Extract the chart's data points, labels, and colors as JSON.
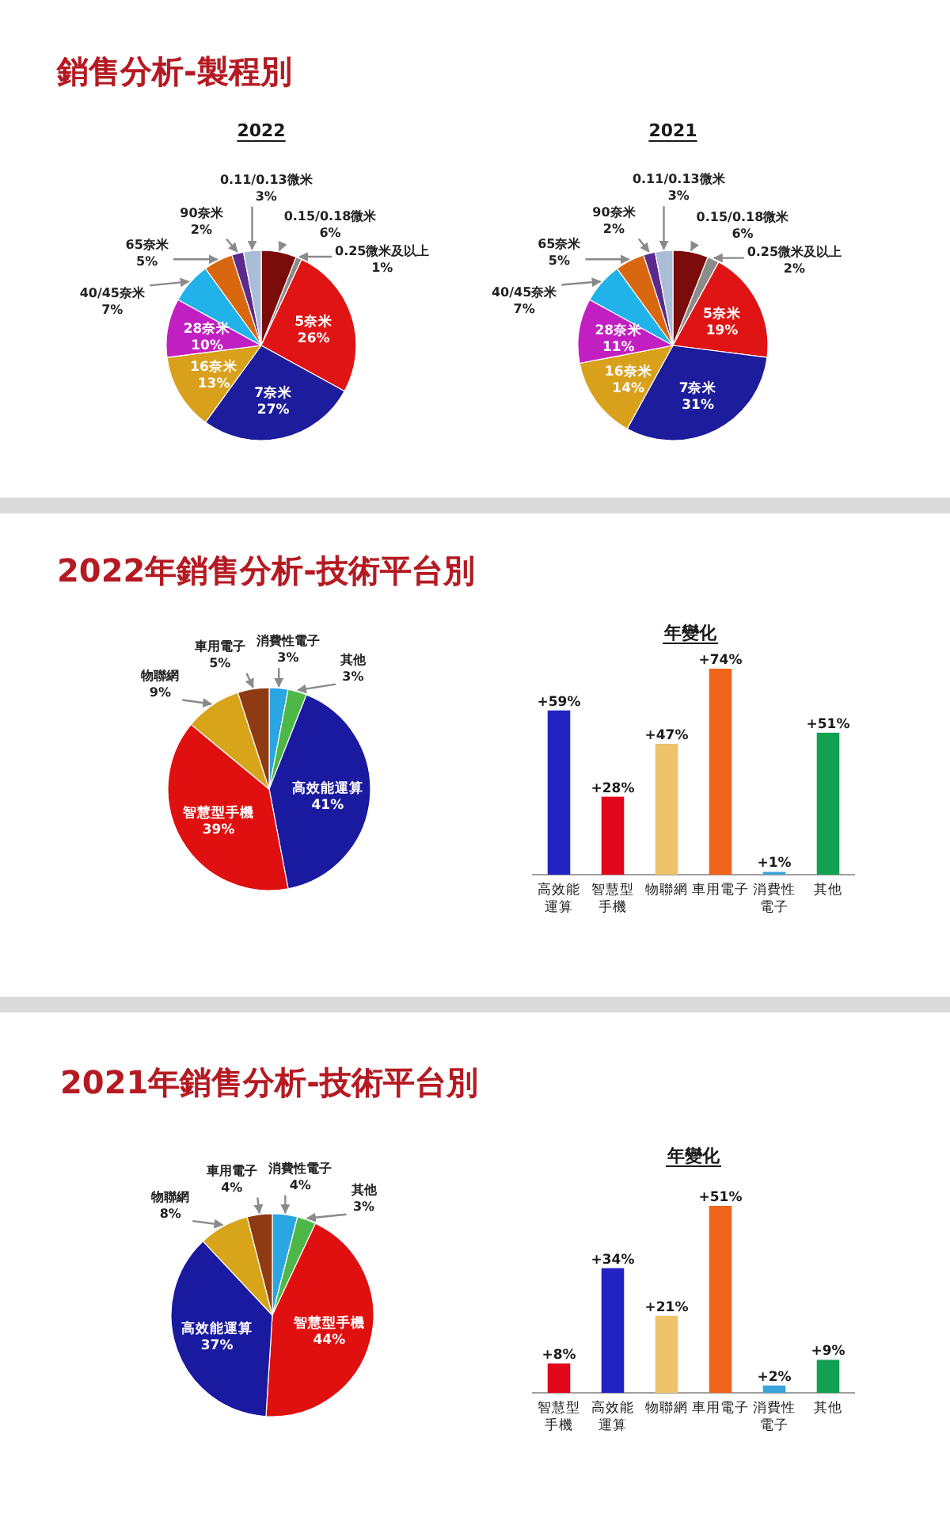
{
  "chart_data": [
    {
      "type": "pie",
      "title": "銷售分析-製程別",
      "subtitle": "2022",
      "categories": [
        "0.15/0.18微米",
        "0.25微米及以上",
        "5奈米",
        "7奈米",
        "16奈米",
        "28奈米",
        "40/45奈米",
        "65奈米",
        "90奈米",
        "0.11/0.13微米"
      ],
      "values": [
        6,
        1,
        26,
        27,
        13,
        10,
        7,
        5,
        2,
        3
      ],
      "value_labels": [
        "6%",
        "1%",
        "26%",
        "27%",
        "13%",
        "10%",
        "7%",
        "5%",
        "2%",
        "3%"
      ],
      "colors": [
        "#7b0c0c",
        "#8c8c8c",
        "#e01414",
        "#1c1c9c",
        "#d9a01c",
        "#c21fc2",
        "#22b2ea",
        "#d8670f",
        "#5b2a8c",
        "#a9bdd6"
      ]
    },
    {
      "type": "pie",
      "title": "2021",
      "categories": [
        "0.15/0.18微米",
        "0.25微米及以上",
        "5奈米",
        "7奈米",
        "16奈米",
        "28奈米",
        "40/45奈米",
        "65奈米",
        "90奈米",
        "0.11/0.13微米"
      ],
      "values": [
        6,
        2,
        19,
        31,
        14,
        11,
        7,
        5,
        2,
        3
      ],
      "value_labels": [
        "6%",
        "2%",
        "19%",
        "31%",
        "14%",
        "11%",
        "7%",
        "5%",
        "2%",
        "3%"
      ],
      "colors": [
        "#7b0c0c",
        "#8c8c8c",
        "#e01414",
        "#1c1c9c",
        "#d9a01c",
        "#c21fc2",
        "#22b2ea",
        "#d8670f",
        "#5b2a8c",
        "#a9bdd6"
      ]
    },
    {
      "type": "pie",
      "title": "2022年銷售分析-技術平台別",
      "categories": [
        "消費性電子",
        "其他",
        "高效能運算",
        "智慧型手機",
        "物聯網",
        "車用電子"
      ],
      "values": [
        3,
        3,
        41,
        39,
        9,
        5
      ],
      "value_labels": [
        "3%",
        "3%",
        "41%",
        "39%",
        "9%",
        "5%"
      ],
      "colors": [
        "#2aa6e2",
        "#4db848",
        "#1a1aa0",
        "#e01010",
        "#d8a41a",
        "#8e3a12"
      ]
    },
    {
      "type": "bar",
      "title": "年變化",
      "categories": [
        "高效能運算",
        "智慧型手機",
        "物聯網",
        "車用電子",
        "消費性電子",
        "其他"
      ],
      "values": [
        59,
        28,
        47,
        74,
        1,
        51
      ],
      "value_labels": [
        "+59%",
        "+28%",
        "+47%",
        "+74%",
        "+1%",
        "+51%"
      ],
      "colors": [
        "#2323c4",
        "#e2061a",
        "#eec36a",
        "#f0631a",
        "#3aa3dc",
        "#12a152"
      ]
    },
    {
      "type": "pie",
      "title": "2021年銷售分析-技術平台別",
      "categories": [
        "消費性電子",
        "其他",
        "智慧型手機",
        "高效能運算",
        "物聯網",
        "車用電子"
      ],
      "values": [
        4,
        3,
        44,
        37,
        8,
        4
      ],
      "value_labels": [
        "4%",
        "3%",
        "44%",
        "37%",
        "8%",
        "4%"
      ],
      "colors": [
        "#2aa6e2",
        "#4db848",
        "#e01010",
        "#1a1aa0",
        "#d8a41a",
        "#8e3a12"
      ]
    },
    {
      "type": "bar",
      "title": "年變化",
      "categories": [
        "智慧型手機",
        "高效能運算",
        "物聯網",
        "車用電子",
        "消費性電子",
        "其他"
      ],
      "values": [
        8,
        34,
        21,
        51,
        2,
        9
      ],
      "value_labels": [
        "+8%",
        "+34%",
        "+21%",
        "+51%",
        "+2%",
        "+9%"
      ],
      "colors": [
        "#e2061a",
        "#2323c4",
        "#eec36a",
        "#f0631a",
        "#3aa3dc",
        "#12a152"
      ]
    }
  ]
}
